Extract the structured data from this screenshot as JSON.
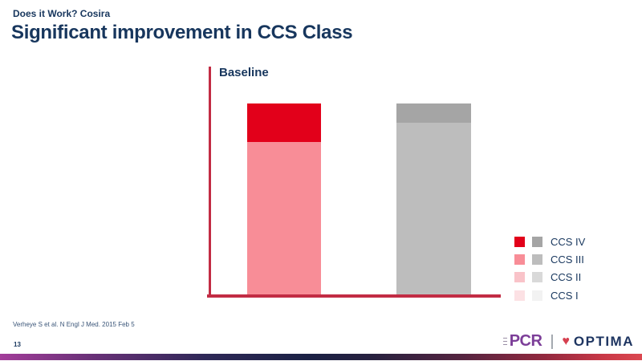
{
  "slide": {
    "kicker": "Does it Work? Cosira",
    "title": "Significant improvement in CCS Class",
    "citation": "Verheye S et al. N Engl J Med. 2015 Feb 5",
    "slide_number": "13"
  },
  "footer": {
    "pcr_label": "PCR",
    "separator": "|",
    "optima_label": "OPTIMA",
    "heart_icon": "♥"
  },
  "colors": {
    "navy_text": "#17365D",
    "axis_red": "#C22C44",
    "pcr_purple": "#7C3E98",
    "optima_navy": "#1E3561",
    "optima_red": "#D6404F"
  },
  "chart_data": {
    "type": "bar",
    "stacked": true,
    "title": "Baseline",
    "categories": [
      "left-bar-pink",
      "right-bar-gray"
    ],
    "series": [
      {
        "name": "CCS IV",
        "values": [
          20,
          10
        ],
        "colors": [
          "#E2001A",
          "#A5A5A5"
        ]
      },
      {
        "name": "CCS III",
        "values": [
          80,
          90
        ],
        "colors": [
          "#F88D97",
          "#BDBDBD"
        ]
      },
      {
        "name": "CCS II",
        "values": [
          0,
          0
        ],
        "colors": [
          "#F9C3C9",
          "#D9D9D9"
        ]
      },
      {
        "name": "CCS I",
        "values": [
          0,
          0
        ],
        "colors": [
          "#FCE1E4",
          "#F2F2F2"
        ]
      }
    ],
    "ylim": [
      0,
      100
    ],
    "y_axis_labels_visible": false,
    "gridlines": false,
    "legend_position": "right",
    "legend_order": [
      "CCS IV",
      "CCS III",
      "CCS II",
      "CCS I"
    ]
  }
}
